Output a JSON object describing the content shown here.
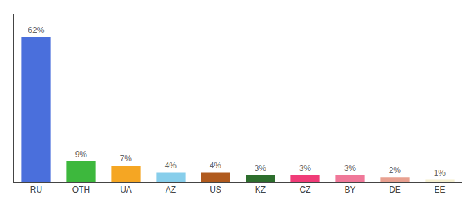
{
  "chart_data": {
    "type": "bar",
    "categories": [
      "RU",
      "OTH",
      "UA",
      "AZ",
      "US",
      "KZ",
      "CZ",
      "BY",
      "DE",
      "EE"
    ],
    "values": [
      62,
      9,
      7,
      4,
      4,
      3,
      3,
      3,
      2,
      1
    ],
    "value_labels": [
      "62%",
      "9%",
      "7%",
      "4%",
      "4%",
      "3%",
      "3%",
      "3%",
      "2%",
      "1%"
    ],
    "colors": [
      "#4a6fdc",
      "#3db83d",
      "#f5a623",
      "#87ceeb",
      "#b05a1e",
      "#2d6e2d",
      "#f03c78",
      "#f07899",
      "#e8a090",
      "#f5f0d0"
    ],
    "ylim": [
      0,
      72
    ],
    "data_labels": true,
    "tick_labels": "x",
    "grid": false
  }
}
